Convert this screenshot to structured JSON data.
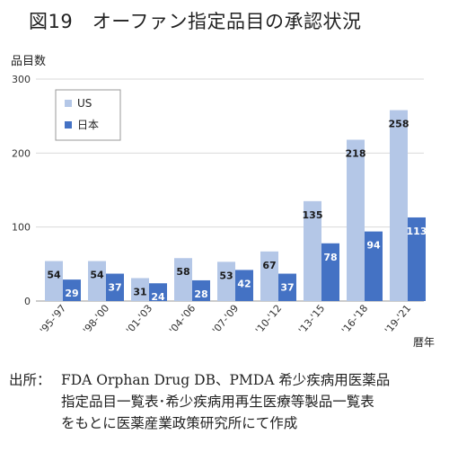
{
  "title": "図19　オーファン指定品目の承認状況",
  "chart_data": {
    "type": "bar",
    "ylabel": "品目数",
    "xlabel": "暦年",
    "ylim": [
      0,
      300
    ],
    "yticks": [
      0,
      100,
      200,
      300
    ],
    "grid": true,
    "legend_position": "top-left",
    "categories": [
      "'95-'97",
      "'98-'00",
      "'01-'03",
      "'04-'06",
      "'07-'09",
      "'10-'12",
      "'13-'15",
      "'16-'18",
      "'19-'21"
    ],
    "series": [
      {
        "name": "US",
        "color": "#b4c7e7",
        "values": [
          54,
          54,
          31,
          58,
          53,
          67,
          135,
          218,
          258
        ]
      },
      {
        "name": "日本",
        "color": "#4472c4",
        "values": [
          29,
          37,
          24,
          28,
          42,
          37,
          78,
          94,
          113
        ]
      }
    ]
  },
  "source": {
    "label": "出所：",
    "text": "FDA Orphan Drug DB、PMDA 希少疾病用医薬品\n指定品目一覧表･希少疾病用再生医療等製品一覧表\nをもとに医薬産業政策研究所にて作成"
  }
}
